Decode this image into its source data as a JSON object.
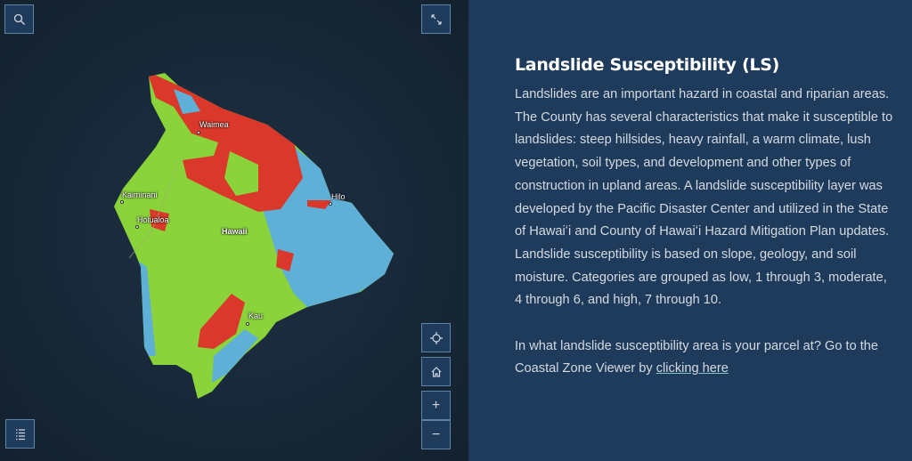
{
  "map": {
    "places": [
      {
        "name": "Waimea"
      },
      {
        "name": "Kaiminani"
      },
      {
        "name": "Holualoa"
      },
      {
        "name": "Hawaii"
      },
      {
        "name": "Hilo"
      },
      {
        "name": "Kau"
      }
    ],
    "colors": {
      "high": "#d9382a",
      "moderate": "#8ad33a",
      "low": "#5fb0d6",
      "ocean": "#17273a"
    },
    "controls": {
      "search": "search-icon",
      "fullscreen": "expand-icon",
      "locate": "crosshair-icon",
      "home": "home-icon",
      "zoom_in": "+",
      "zoom_out": "−",
      "legend": "list-icon"
    }
  },
  "panel": {
    "title": "Landslide Susceptibility (LS)",
    "body": "Landslides are an important hazard in coastal and riparian areas. The County has several characteristics that make it susceptible to landslides: steep hillsides, heavy rainfall, a warm climate, lush vegetation, soil types, and development and other types of construction in upland areas. A landslide susceptibility layer was developed by the Pacific Disaster Center and utilized in the State of Hawaiʻi and County of Hawaiʻi Hazard Mitigation Plan updates. Landslide susceptibility is based on slope, geology, and soil moisture. Categories are grouped as low, 1 through 3, moderate, 4 through 6, and high, 7 through 10.",
    "question": "In what landslide susceptibility area is your parcel at? Go to the Coastal Zone Viewer by ",
    "link": "clicking here"
  }
}
